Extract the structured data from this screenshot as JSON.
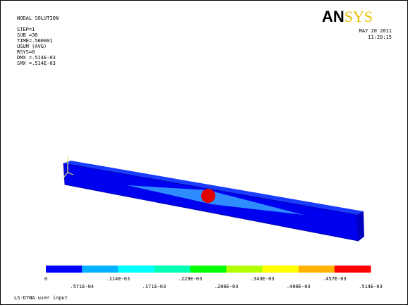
{
  "header": {
    "title": "NODAL SOLUTION",
    "lines": [
      "STEP=1",
      "SUB =36",
      "TIME=.500001",
      "USUM   (AVG)",
      "RSYS=0",
      "DMX =.514E-03",
      "SMX =.514E-03"
    ]
  },
  "logo": {
    "an": "AN",
    "sys": "SYS"
  },
  "date": [
    "MAY 20 2011",
    "11:20:15"
  ],
  "legend": {
    "labels": [
      "0",
      ".571E-04",
      ".114E-03",
      ".171E-03",
      ".229E-03",
      ".286E-03",
      ".343E-03",
      ".400E-03",
      ".457E-03",
      ".514E-03"
    ]
  },
  "footer": "LS-DYNA user input"
}
